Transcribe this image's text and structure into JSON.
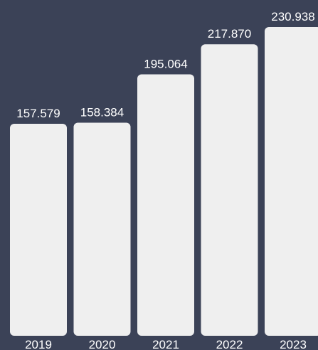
{
  "chart_data": {
    "type": "bar",
    "categories": [
      "2019",
      "2020",
      "2021",
      "2022",
      "2023"
    ],
    "values": [
      157.579,
      158.384,
      195.064,
      217.87,
      230.938
    ],
    "value_labels": [
      "157.579",
      "158.384",
      "195.064",
      "217.870",
      "230.938"
    ],
    "ylim": [
      0,
      230.938
    ],
    "grid": false,
    "legend": "none",
    "colors": {
      "background": "#3b4257",
      "bar": "#efefef",
      "text": "#ffffff"
    }
  }
}
